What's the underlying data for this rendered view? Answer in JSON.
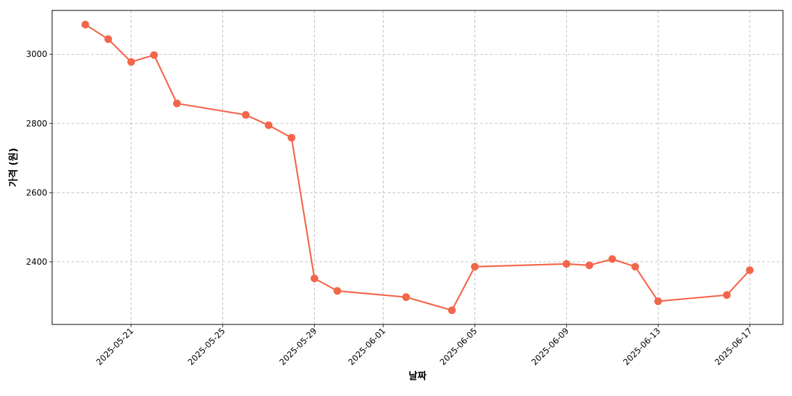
{
  "chart_data": {
    "type": "line",
    "x_label": "날짜",
    "y_label": "가격 (원)",
    "x": [
      "2025-05-19",
      "2025-05-20",
      "2025-05-21",
      "2025-05-22",
      "2025-05-23",
      "2025-05-26",
      "2025-05-27",
      "2025-05-28",
      "2025-05-29",
      "2025-05-30",
      "2025-06-02",
      "2025-06-04",
      "2025-06-05",
      "2025-06-09",
      "2025-06-10",
      "2025-06-11",
      "2025-06-12",
      "2025-06-13",
      "2025-06-16",
      "2025-06-17"
    ],
    "series": [
      {
        "color": "#f2664a",
        "values": [
          3086,
          3044,
          2978,
          2998,
          2858,
          2825,
          2795,
          2759,
          2352,
          2316,
          2298,
          2260,
          2386,
          2394,
          2390,
          2408,
          2386,
          2286,
          2304,
          2376
        ]
      }
    ],
    "xlim": [
      "2025-05-17T13:12",
      "2025-06-18T10:48"
    ],
    "xticks": [
      "2025-05-21",
      "2025-05-25",
      "2025-05-29",
      "2025-06-01",
      "2025-06-05",
      "2025-06-09",
      "2025-06-13",
      "2025-06-17"
    ],
    "ylim": [
      2219,
      3127
    ],
    "yticks": [
      2400,
      2600,
      2800,
      3000
    ],
    "grid": true
  }
}
